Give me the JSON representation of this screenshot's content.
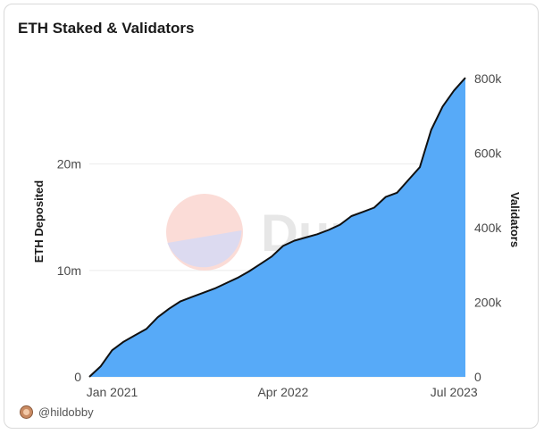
{
  "chart_data": {
    "type": "area",
    "title": "ETH Staked & Validators",
    "ylabel": "ETH Deposited",
    "y2label": "Validators",
    "x_tick_labels": [
      "Jan 2021",
      "Apr 2022",
      "Jul 2023"
    ],
    "x": [
      "2020-11",
      "2020-12",
      "2021-01",
      "2021-02",
      "2021-03",
      "2021-04",
      "2021-05",
      "2021-06",
      "2021-07",
      "2021-08",
      "2021-09",
      "2021-10",
      "2021-11",
      "2021-12",
      "2022-01",
      "2022-02",
      "2022-03",
      "2022-04",
      "2022-05",
      "2022-06",
      "2022-07",
      "2022-08",
      "2022-09",
      "2022-10",
      "2022-11",
      "2022-12",
      "2023-01",
      "2023-02",
      "2023-03",
      "2023-04",
      "2023-05",
      "2023-06",
      "2023-07",
      "2023-08"
    ],
    "series": [
      {
        "name": "ETH Deposited",
        "values": [
          0.0,
          1.0,
          2.5,
          3.3,
          3.9,
          4.5,
          5.6,
          6.4,
          7.1,
          7.5,
          7.9,
          8.3,
          8.8,
          9.3,
          9.9,
          10.6,
          11.3,
          12.3,
          12.8,
          13.1,
          13.4,
          13.8,
          14.3,
          15.1,
          15.5,
          15.9,
          16.9,
          17.3,
          18.5,
          19.7,
          23.2,
          25.4,
          26.9,
          28.1
        ]
      }
    ],
    "ylim": [
      0,
      29.2
    ],
    "y_ticks": [
      "0",
      "10m",
      "20m"
    ],
    "y2_ticks": [
      "0",
      "200k",
      "400k",
      "600k",
      "800k"
    ],
    "grid": true,
    "fill_color": "#57aaf8",
    "line_color": "#111111",
    "watermark": "Dune"
  },
  "footer": {
    "handle": "@hildobby"
  }
}
